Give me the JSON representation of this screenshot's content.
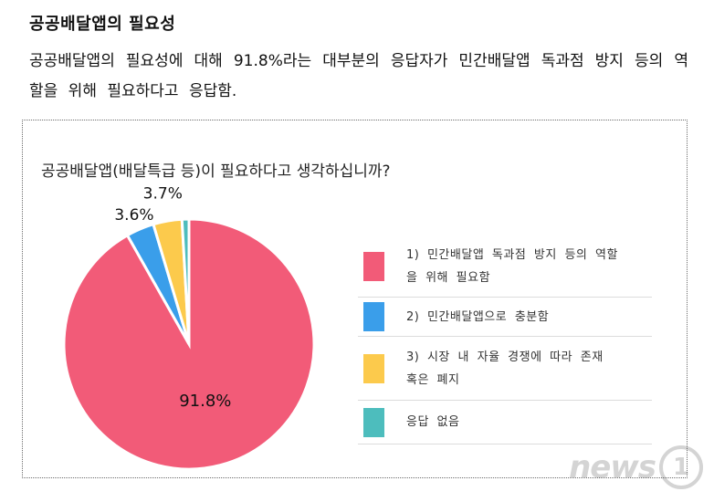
{
  "article": {
    "heading": "공공배달앱의 필요성",
    "body": "공공배달앱의 필요성에 대해 91.8%라는 대부분의 응답자가 민간배달앱 독과점 방지 등의 역할을 위해 필요하다고 응답함."
  },
  "chart_data": {
    "type": "pie",
    "title": "공공배달앱(배달특급 등)이 필요하다고 생각하십니까?",
    "slices": [
      {
        "label": "1) 민간배달앱 독과점 방지 등의 역할을 위해 필요함",
        "value": 91.8,
        "display": "91.8%",
        "color": "#f25b78"
      },
      {
        "label": "2) 민간배달앱으로 충분함",
        "value": 3.6,
        "display": "3.6%",
        "color": "#3a9eea"
      },
      {
        "label": "3) 시장 내 자율 경쟁에 따라 존재 혹은 폐지",
        "value": 3.7,
        "display": "3.7%",
        "color": "#fcca4c"
      },
      {
        "label": "응답 없음",
        "value": 0.9,
        "display": "",
        "color": "#4dbdbd"
      }
    ],
    "legend": {
      "placement": "right",
      "items": [
        {
          "line1": "1) 민간배달앱 독과점 방지 등의 역할",
          "line2": "을 위해 필요함"
        },
        {
          "line1": "2) 민간배달앱으로 충분함",
          "line2": ""
        },
        {
          "line1": "3) 시장 내 자율 경쟁에 따라 존재",
          "line2": "혹은 폐지"
        },
        {
          "line1": "응답 없음",
          "line2": ""
        }
      ]
    }
  },
  "watermark": {
    "word": "news",
    "digit": "1"
  }
}
